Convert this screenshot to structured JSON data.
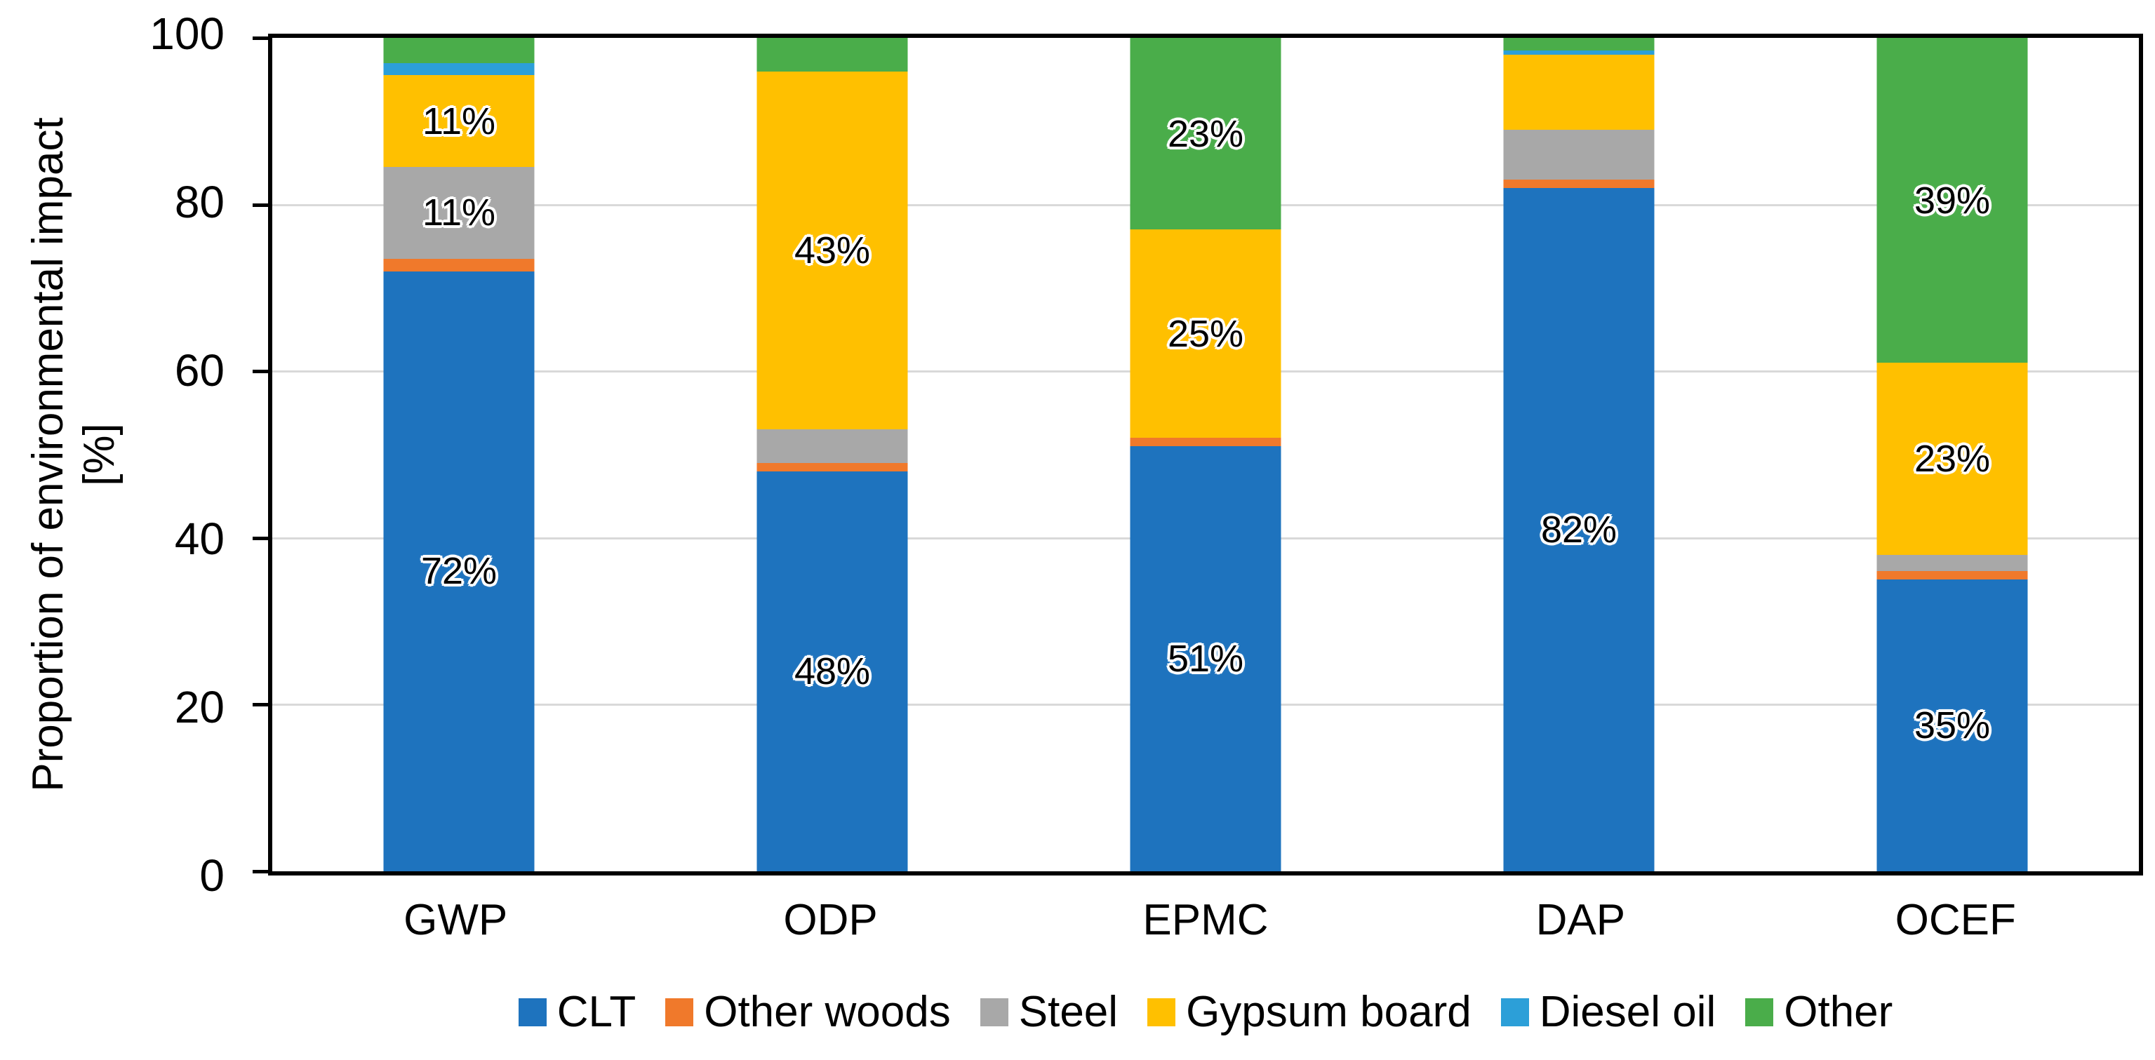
{
  "chart_data": {
    "type": "bar",
    "subtype": "stacked-percent",
    "title": "",
    "ylabel_line1": "Proportion of environmental impact",
    "ylabel_line2": "[%]",
    "xlabel": "",
    "ylim": [
      0,
      100
    ],
    "yticks": [
      "0",
      "20",
      "40",
      "60",
      "80",
      "100"
    ],
    "grid": true,
    "legend_position": "bottom",
    "categories": [
      "GWP",
      "ODP",
      "EPMC",
      "DAP",
      "OCEF"
    ],
    "series": [
      {
        "name": "CLT",
        "color": "#1E73BE",
        "values": [
          72,
          48,
          51,
          82,
          35
        ],
        "labels": [
          "72%",
          "48%",
          "51%",
          "82%",
          "35%"
        ]
      },
      {
        "name": "Other woods",
        "color": "#F0792B",
        "values": [
          1.5,
          1,
          1,
          1,
          1
        ],
        "labels": [
          null,
          null,
          null,
          null,
          null
        ]
      },
      {
        "name": "Steel",
        "color": "#A8A8A8",
        "values": [
          11,
          4,
          0,
          6,
          2
        ],
        "labels": [
          "11%",
          null,
          null,
          null,
          null
        ]
      },
      {
        "name": "Gypsum board",
        "color": "#FFC000",
        "values": [
          11,
          43,
          25,
          9,
          23
        ],
        "labels": [
          "11%",
          "43%",
          "25%",
          null,
          "23%"
        ]
      },
      {
        "name": "Diesel oil",
        "color": "#2C9FD8",
        "values": [
          1.5,
          0,
          0,
          0.5,
          0
        ],
        "labels": [
          null,
          null,
          null,
          null,
          null
        ]
      },
      {
        "name": "Other",
        "color": "#4AAD4A",
        "values": [
          3,
          4,
          23,
          1.5,
          39
        ],
        "labels": [
          null,
          null,
          "23%",
          null,
          "39%"
        ]
      }
    ],
    "axis_color": "#000000",
    "gridline_color": "#d9d9d9",
    "bar_label_color": "#000000",
    "bar_label_halo": "#ffffff"
  }
}
